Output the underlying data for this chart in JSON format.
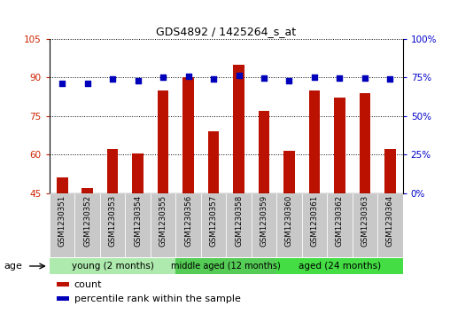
{
  "title": "GDS4892 / 1425264_s_at",
  "samples": [
    "GSM1230351",
    "GSM1230352",
    "GSM1230353",
    "GSM1230354",
    "GSM1230355",
    "GSM1230356",
    "GSM1230357",
    "GSM1230358",
    "GSM1230359",
    "GSM1230360",
    "GSM1230361",
    "GSM1230362",
    "GSM1230363",
    "GSM1230364"
  ],
  "counts": [
    51,
    47,
    62,
    60.5,
    85,
    90,
    69,
    95,
    77,
    61.5,
    85,
    82,
    84,
    62
  ],
  "percentiles": [
    71,
    71,
    74,
    73,
    75,
    75.5,
    74,
    76,
    74.5,
    73,
    75,
    74.5,
    74.5,
    74
  ],
  "ylim_left": [
    45,
    105
  ],
  "ylim_right": [
    0,
    100
  ],
  "yticks_left": [
    45,
    60,
    75,
    90,
    105
  ],
  "yticks_right": [
    0,
    25,
    50,
    75,
    100
  ],
  "groups": [
    {
      "label": "young (2 months)",
      "start": 0,
      "end": 5
    },
    {
      "label": "middle aged (12 months)",
      "start": 5,
      "end": 9
    },
    {
      "label": "aged (24 months)",
      "start": 9,
      "end": 14
    }
  ],
  "group_colors": [
    "#AEEAAE",
    "#55CC55",
    "#44DD44"
  ],
  "bar_color": "#BB1100",
  "dot_color": "#0000BB",
  "grid_color": "#000000",
  "legend_items": [
    {
      "label": "count",
      "color": "#BB1100"
    },
    {
      "label": "percentile rank within the sample",
      "color": "#0000BB"
    }
  ],
  "left_tick_color": "#CC2200",
  "right_tick_color": "#0000CC",
  "sample_bg": "#C8C8C8",
  "bar_width": 0.45
}
